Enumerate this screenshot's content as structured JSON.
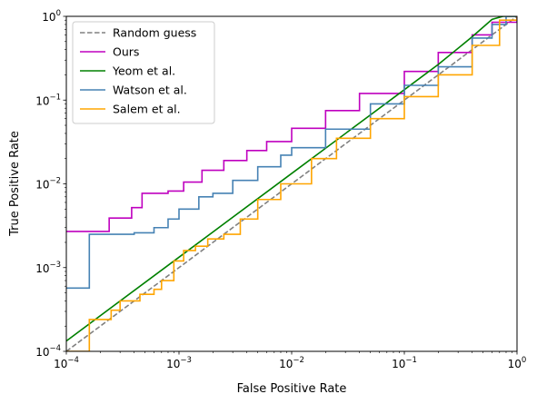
{
  "chart_data": {
    "type": "line",
    "xlabel": "False Positive Rate",
    "ylabel": "True Positive Rate",
    "xscale": "log",
    "yscale": "log",
    "xlim": [
      0.0001,
      1
    ],
    "ylim": [
      0.0001,
      1
    ],
    "grid": false,
    "legend_position": "top-left",
    "x_ticks": [
      {
        "value": 0.0001,
        "base": "10",
        "exp": "−4"
      },
      {
        "value": 0.001,
        "base": "10",
        "exp": "−3"
      },
      {
        "value": 0.01,
        "base": "10",
        "exp": "−2"
      },
      {
        "value": 0.1,
        "base": "10",
        "exp": "−1"
      },
      {
        "value": 1,
        "base": "10",
        "exp": "0"
      }
    ],
    "y_ticks": [
      {
        "value": 0.0001,
        "base": "10",
        "exp": "−4"
      },
      {
        "value": 0.001,
        "base": "10",
        "exp": "−3"
      },
      {
        "value": 0.01,
        "base": "10",
        "exp": "−2"
      },
      {
        "value": 0.1,
        "base": "10",
        "exp": "−1"
      },
      {
        "value": 1,
        "base": "10",
        "exp": "0"
      }
    ],
    "series": [
      {
        "name": "Random guess",
        "color": "#808080",
        "style": "dashed",
        "step": false,
        "points": [
          [
            0.0001,
            0.0001
          ],
          [
            1,
            1
          ]
        ]
      },
      {
        "name": "Ours",
        "color": "#bf00bf",
        "style": "solid",
        "step": true,
        "points": [
          [
            0.0001,
            0.0027
          ],
          [
            0.00024,
            0.0027
          ],
          [
            0.00024,
            0.0039
          ],
          [
            0.00038,
            0.0039
          ],
          [
            0.00038,
            0.0052
          ],
          [
            0.00047,
            0.0052
          ],
          [
            0.00047,
            0.0077
          ],
          [
            0.0008,
            0.0082
          ],
          [
            0.0011,
            0.0105
          ],
          [
            0.0016,
            0.0145
          ],
          [
            0.0025,
            0.019
          ],
          [
            0.004,
            0.025
          ],
          [
            0.006,
            0.032
          ],
          [
            0.01,
            0.046
          ],
          [
            0.02,
            0.075
          ],
          [
            0.04,
            0.12
          ],
          [
            0.1,
            0.22
          ],
          [
            0.2,
            0.37
          ],
          [
            0.4,
            0.6
          ],
          [
            0.6,
            0.85
          ],
          [
            1,
            1
          ]
        ]
      },
      {
        "name": "Yeom et al.",
        "color": "#008000",
        "style": "solid",
        "step": false,
        "points": [
          [
            0.0001,
            0.000133
          ],
          [
            0.001,
            0.00133
          ],
          [
            0.01,
            0.0133
          ],
          [
            0.1,
            0.133
          ],
          [
            0.2,
            0.266
          ],
          [
            0.4,
            0.57
          ],
          [
            0.6,
            0.92
          ],
          [
            0.75,
            1
          ],
          [
            1,
            1
          ]
        ]
      },
      {
        "name": "Watson et al.",
        "color": "#4682b4",
        "style": "solid",
        "step": true,
        "points": [
          [
            0.0001,
            0.00057
          ],
          [
            0.00016,
            0.00057
          ],
          [
            0.00016,
            0.0025
          ],
          [
            0.0003,
            0.0025
          ],
          [
            0.0004,
            0.0026
          ],
          [
            0.0006,
            0.003
          ],
          [
            0.0008,
            0.0038
          ],
          [
            0.001,
            0.005
          ],
          [
            0.0015,
            0.007
          ],
          [
            0.002,
            0.0077
          ],
          [
            0.003,
            0.011
          ],
          [
            0.005,
            0.016
          ],
          [
            0.008,
            0.022
          ],
          [
            0.01,
            0.027
          ],
          [
            0.02,
            0.045
          ],
          [
            0.05,
            0.09
          ],
          [
            0.1,
            0.15
          ],
          [
            0.2,
            0.25
          ],
          [
            0.4,
            0.55
          ],
          [
            0.6,
            0.8
          ],
          [
            0.8,
            1
          ],
          [
            1,
            1
          ]
        ]
      },
      {
        "name": "Salem et al.",
        "color": "#ffa500",
        "style": "solid",
        "step": true,
        "points": [
          [
            0.0001,
            0.0001
          ],
          [
            0.00016,
            0.00024
          ],
          [
            0.00025,
            0.00031
          ],
          [
            0.0003,
            0.0004
          ],
          [
            0.00045,
            0.00048
          ],
          [
            0.0006,
            0.00055
          ],
          [
            0.0007,
            0.0007
          ],
          [
            0.0009,
            0.0012
          ],
          [
            0.0011,
            0.0016
          ],
          [
            0.0014,
            0.0018
          ],
          [
            0.0018,
            0.0022
          ],
          [
            0.0025,
            0.0025
          ],
          [
            0.0035,
            0.0038
          ],
          [
            0.005,
            0.0065
          ],
          [
            0.008,
            0.01
          ],
          [
            0.015,
            0.02
          ],
          [
            0.025,
            0.035
          ],
          [
            0.05,
            0.06
          ],
          [
            0.1,
            0.11
          ],
          [
            0.2,
            0.2
          ],
          [
            0.4,
            0.45
          ],
          [
            0.7,
            0.9
          ],
          [
            1,
            1
          ]
        ]
      }
    ]
  }
}
